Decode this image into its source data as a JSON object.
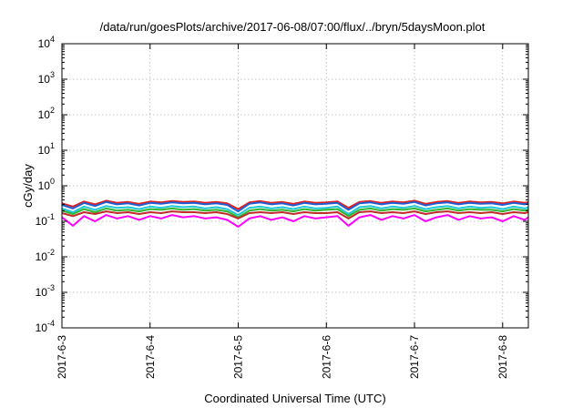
{
  "chart_data": {
    "type": "line",
    "title": "/data/run/goesPlots/archive/2017-06-08/07:00/flux/../bryn/5daysMoon.plot",
    "xlabel": "Coordinated Universal Time (UTC)",
    "ylabel": "cGy/day",
    "yscale": "log",
    "ylim": [
      0.0001,
      10000
    ],
    "y_ticks": [
      {
        "base": "10",
        "exp": "-4",
        "value": 0.0001
      },
      {
        "base": "10",
        "exp": "-3",
        "value": 0.001
      },
      {
        "base": "10",
        "exp": "-2",
        "value": 0.01
      },
      {
        "base": "10",
        "exp": "-1",
        "value": 0.1
      },
      {
        "base": "10",
        "exp": "0",
        "value": 1
      },
      {
        "base": "10",
        "exp": "1",
        "value": 10
      },
      {
        "base": "10",
        "exp": "2",
        "value": 100
      },
      {
        "base": "10",
        "exp": "3",
        "value": 1000
      },
      {
        "base": "10",
        "exp": "4",
        "value": 10000
      }
    ],
    "xlim": [
      "2017-06-03 00:00",
      "2017-06-08 07:00"
    ],
    "x_ticks": [
      "2017-6-3",
      "2017-6-4",
      "2017-6-5",
      "2017-6-6",
      "2017-6-7",
      "2017-6-8"
    ],
    "grid": true,
    "x": [
      "2017-06-03 00:00",
      "2017-06-03 03:00",
      "2017-06-03 06:00",
      "2017-06-03 09:00",
      "2017-06-03 12:00",
      "2017-06-03 15:00",
      "2017-06-03 18:00",
      "2017-06-03 21:00",
      "2017-06-04 00:00",
      "2017-06-04 03:00",
      "2017-06-04 06:00",
      "2017-06-04 09:00",
      "2017-06-04 12:00",
      "2017-06-04 15:00",
      "2017-06-04 18:00",
      "2017-06-04 21:00",
      "2017-06-05 00:00",
      "2017-06-05 03:00",
      "2017-06-05 06:00",
      "2017-06-05 09:00",
      "2017-06-05 12:00",
      "2017-06-05 15:00",
      "2017-06-05 18:00",
      "2017-06-05 21:00",
      "2017-06-06 00:00",
      "2017-06-06 03:00",
      "2017-06-06 06:00",
      "2017-06-06 09:00",
      "2017-06-06 12:00",
      "2017-06-06 15:00",
      "2017-06-06 18:00",
      "2017-06-06 21:00",
      "2017-06-07 00:00",
      "2017-06-07 03:00",
      "2017-06-07 06:00",
      "2017-06-07 09:00",
      "2017-06-07 12:00",
      "2017-06-07 15:00",
      "2017-06-07 18:00",
      "2017-06-07 21:00",
      "2017-06-08 00:00",
      "2017-06-08 03:00",
      "2017-06-08 06:00",
      "2017-06-08 07:00"
    ],
    "series": [
      {
        "color": "#e02020",
        "values": [
          0.32,
          0.26,
          0.36,
          0.3,
          0.38,
          0.33,
          0.35,
          0.31,
          0.36,
          0.34,
          0.37,
          0.35,
          0.36,
          0.33,
          0.35,
          0.32,
          0.22,
          0.34,
          0.37,
          0.33,
          0.35,
          0.31,
          0.36,
          0.33,
          0.34,
          0.36,
          0.24,
          0.35,
          0.37,
          0.33,
          0.36,
          0.34,
          0.38,
          0.31,
          0.35,
          0.37,
          0.33,
          0.36,
          0.34,
          0.35,
          0.32,
          0.36,
          0.33,
          0.35
        ]
      },
      {
        "color": "#1f5fd6",
        "values": [
          0.29,
          0.23,
          0.33,
          0.27,
          0.35,
          0.3,
          0.32,
          0.28,
          0.33,
          0.31,
          0.34,
          0.32,
          0.33,
          0.3,
          0.32,
          0.29,
          0.19,
          0.31,
          0.34,
          0.3,
          0.32,
          0.28,
          0.33,
          0.3,
          0.31,
          0.33,
          0.21,
          0.32,
          0.34,
          0.3,
          0.33,
          0.31,
          0.35,
          0.28,
          0.32,
          0.34,
          0.3,
          0.33,
          0.31,
          0.32,
          0.29,
          0.33,
          0.3,
          0.32
        ]
      },
      {
        "color": "#1ec8d8",
        "values": [
          0.23,
          0.18,
          0.26,
          0.21,
          0.27,
          0.24,
          0.25,
          0.22,
          0.26,
          0.24,
          0.27,
          0.25,
          0.26,
          0.23,
          0.25,
          0.22,
          0.15,
          0.24,
          0.26,
          0.23,
          0.25,
          0.22,
          0.26,
          0.23,
          0.24,
          0.26,
          0.16,
          0.25,
          0.27,
          0.23,
          0.26,
          0.24,
          0.27,
          0.22,
          0.25,
          0.27,
          0.23,
          0.26,
          0.24,
          0.25,
          0.22,
          0.26,
          0.23,
          0.25
        ]
      },
      {
        "color": "#2fb52f",
        "values": [
          0.2,
          0.16,
          0.22,
          0.18,
          0.23,
          0.2,
          0.21,
          0.19,
          0.22,
          0.21,
          0.23,
          0.21,
          0.22,
          0.2,
          0.21,
          0.19,
          0.13,
          0.2,
          0.22,
          0.2,
          0.21,
          0.19,
          0.22,
          0.2,
          0.21,
          0.22,
          0.14,
          0.21,
          0.23,
          0.2,
          0.22,
          0.21,
          0.23,
          0.19,
          0.21,
          0.23,
          0.2,
          0.22,
          0.21,
          0.21,
          0.19,
          0.22,
          0.2,
          0.21
        ]
      },
      {
        "color": "#c02a2a",
        "values": [
          0.17,
          0.14,
          0.18,
          0.16,
          0.19,
          0.17,
          0.18,
          0.16,
          0.18,
          0.17,
          0.19,
          0.18,
          0.18,
          0.17,
          0.18,
          0.16,
          0.12,
          0.17,
          0.18,
          0.17,
          0.18,
          0.16,
          0.18,
          0.17,
          0.17,
          0.18,
          0.12,
          0.18,
          0.19,
          0.17,
          0.18,
          0.17,
          0.19,
          0.16,
          0.18,
          0.19,
          0.17,
          0.18,
          0.17,
          0.18,
          0.16,
          0.18,
          0.17,
          0.18
        ]
      },
      {
        "color": "#ff00ff",
        "values": [
          0.13,
          0.075,
          0.14,
          0.1,
          0.15,
          0.12,
          0.14,
          0.11,
          0.14,
          0.12,
          0.15,
          0.13,
          0.14,
          0.12,
          0.13,
          0.11,
          0.07,
          0.12,
          0.14,
          0.11,
          0.13,
          0.1,
          0.14,
          0.12,
          0.13,
          0.14,
          0.075,
          0.13,
          0.15,
          0.11,
          0.14,
          0.12,
          0.15,
          0.1,
          0.13,
          0.15,
          0.11,
          0.14,
          0.12,
          0.13,
          0.1,
          0.14,
          0.11,
          0.13
        ]
      }
    ]
  }
}
